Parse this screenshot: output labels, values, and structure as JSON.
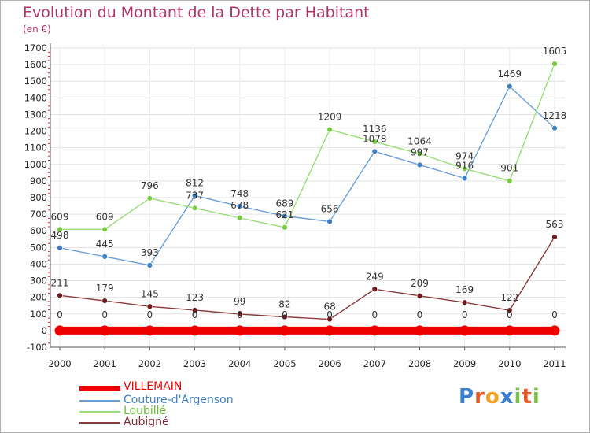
{
  "title": "Evolution du Montant de la Dette par Habitant",
  "subtitle": "(en €)",
  "chart_data": {
    "type": "line",
    "title": "Evolution du Montant de la Dette par Habitant",
    "ylabel": "(en €)",
    "xlabel": "",
    "x": [
      "2000",
      "2001",
      "2002",
      "2003",
      "2004",
      "2005",
      "2006",
      "2007",
      "2008",
      "2009",
      "2010",
      "2011"
    ],
    "ylim": [
      -100,
      1700
    ],
    "yticks": [
      -100,
      0,
      100,
      200,
      300,
      400,
      500,
      600,
      700,
      800,
      900,
      1000,
      1100,
      1200,
      1300,
      1400,
      1500,
      1600,
      1700
    ],
    "series": [
      {
        "name": "VILLEMAIN",
        "color": "#ee0000",
        "values": [
          0,
          0,
          0,
          0,
          0,
          0,
          0,
          0,
          0,
          0,
          0,
          0
        ]
      },
      {
        "name": "Couture-d'Argenson",
        "color": "#6c9ed6",
        "marker": "#3d7fc4",
        "values": [
          498,
          445,
          393,
          812,
          748,
          689,
          656,
          1078,
          997,
          916,
          1469,
          1218
        ]
      },
      {
        "name": "Loubillé",
        "color": "#99dd77",
        "marker": "#77cc44",
        "values": [
          609,
          609,
          796,
          737,
          678,
          621,
          1209,
          1136,
          1064,
          974,
          901,
          1605
        ]
      },
      {
        "name": "Aubigné",
        "color": "#8a3a3a",
        "marker": "#6e1a1a",
        "values": [
          211,
          179,
          145,
          123,
          99,
          82,
          68,
          249,
          209,
          169,
          122,
          563
        ]
      }
    ]
  },
  "legend": [
    "VILLEMAIN",
    "Couture-d'Argenson",
    "Loubillé",
    "Aubigné"
  ],
  "logo": {
    "text": "Proxiti",
    "colors": [
      "#3a7fd0",
      "#e65a2a",
      "#f0a020",
      "#3a7fd0",
      "#7cc04a",
      "#e65a2a",
      "#7cc04a"
    ]
  }
}
